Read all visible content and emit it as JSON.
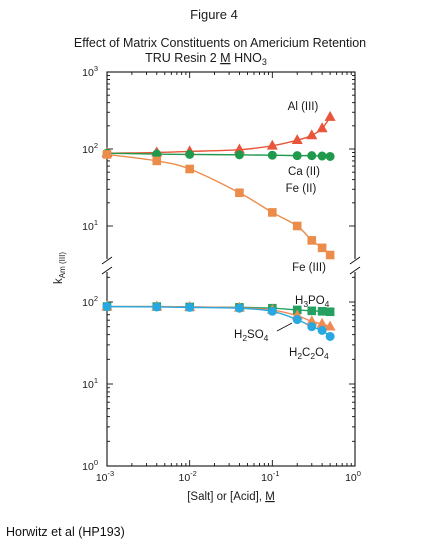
{
  "figure_label": "Figure 4",
  "credit": "Horwitz et al (HP193)",
  "colors": {
    "al": "#e8553a",
    "ca": "#1f9a4c",
    "fe": "#ec8c4a",
    "h3po4": "#24a060",
    "h2so4": "#f08a55",
    "h2c2o4": "#28a8e0"
  },
  "chart_data": {
    "type": "scatter",
    "title_line1": "Effect of Matrix Constituents on Americium Retention",
    "title_line2_prefix": "TRU Resin  2 ",
    "title_line2_unit": "M",
    "title_line2_suffix": " HNO",
    "title_line2_sub": "3",
    "xlabel_prefix": "[Salt] or [Acid], ",
    "xlabel_unit": "M",
    "ylabel_main": "k",
    "ylabel_sub": "Am (III)",
    "xscale": "log",
    "yscale": "log",
    "grid": false,
    "xlim": [
      0.001,
      1
    ],
    "x_ticks": [
      {
        "base": "10",
        "exp": "-3"
      },
      {
        "base": "10",
        "exp": "-2"
      },
      {
        "base": "10",
        "exp": "-1"
      },
      {
        "base": "10",
        "exp": "0"
      }
    ],
    "panels": [
      {
        "name": "upper",
        "ylim": [
          10,
          1000
        ],
        "y_ticks": [
          {
            "base": "10",
            "exp": "3"
          },
          {
            "base": "10",
            "exp": "2"
          },
          {
            "base": "10",
            "exp": "1"
          }
        ],
        "series": [
          {
            "name": "Al (III)",
            "marker": "triangle",
            "color_key": "al",
            "x": [
              0.001,
              0.004,
              0.01,
              0.04,
              0.1,
              0.2,
              0.3,
              0.4,
              0.5
            ],
            "y": [
              88,
              90,
              93,
              98,
              110,
              130,
              150,
              185,
              260
            ]
          },
          {
            "name": "Ca (II)",
            "marker": "circle",
            "color_key": "ca",
            "x": [
              0.001,
              0.004,
              0.01,
              0.04,
              0.1,
              0.2,
              0.3,
              0.4,
              0.5
            ],
            "y": [
              88,
              86,
              85,
              84,
              83,
              82,
              82,
              81,
              80
            ]
          },
          {
            "name": "Fe (III)",
            "marker": "square",
            "color_key": "fe",
            "x": [
              0.001,
              0.004,
              0.01,
              0.04,
              0.1,
              0.2,
              0.3,
              0.4,
              0.5
            ],
            "y": [
              85,
              70,
              55,
              27,
              15,
              10,
              6.5,
              5.2,
              4.2
            ]
          }
        ],
        "labels": [
          {
            "text": "Al (III)",
            "series": "Al (III)"
          },
          {
            "text": "Ca (II)",
            "series": "Ca (II)"
          },
          {
            "text": "Fe (II)",
            "series": "Fe (II)"
          },
          {
            "text": "Fe (III)",
            "series": "Fe (III)"
          }
        ]
      },
      {
        "name": "lower",
        "ylim": [
          1,
          1000
        ],
        "y_ticks": [
          {
            "base": "10",
            "exp": "2"
          },
          {
            "base": "10",
            "exp": "1"
          },
          {
            "base": "10",
            "exp": "0"
          }
        ],
        "series": [
          {
            "name": "H3PO4",
            "marker": "square",
            "color_key": "h3po4",
            "x": [
              0.001,
              0.004,
              0.01,
              0.04,
              0.1,
              0.2,
              0.3,
              0.4,
              0.5
            ],
            "y": [
              88,
              88,
              87,
              86,
              84,
              80,
              78,
              77,
              76
            ]
          },
          {
            "name": "H2SO4",
            "marker": "triangle",
            "color_key": "h2so4",
            "x": [
              0.001,
              0.004,
              0.01,
              0.04,
              0.1,
              0.2,
              0.3,
              0.4,
              0.5
            ],
            "y": [
              88,
              88,
              87,
              85,
              80,
              68,
              58,
              54,
              50
            ]
          },
          {
            "name": "H2C2O4",
            "marker": "circle",
            "color_key": "h2c2o4",
            "x": [
              0.001,
              0.004,
              0.01,
              0.04,
              0.1,
              0.2,
              0.3,
              0.4,
              0.5
            ],
            "y": [
              88,
              87,
              86,
              84,
              77,
              61,
              50,
              45,
              38
            ]
          }
        ],
        "labels": [
          {
            "text": "H",
            "sub1": "3",
            "mid": "PO",
            "sub2": "4"
          },
          {
            "text": "H",
            "sub1": "2",
            "mid": "SO",
            "sub2": "4"
          },
          {
            "text": "H",
            "sub1": "2",
            "mid": "C",
            "sub2": "2",
            "mid2": "O",
            "sub3": "4"
          }
        ]
      }
    ]
  }
}
